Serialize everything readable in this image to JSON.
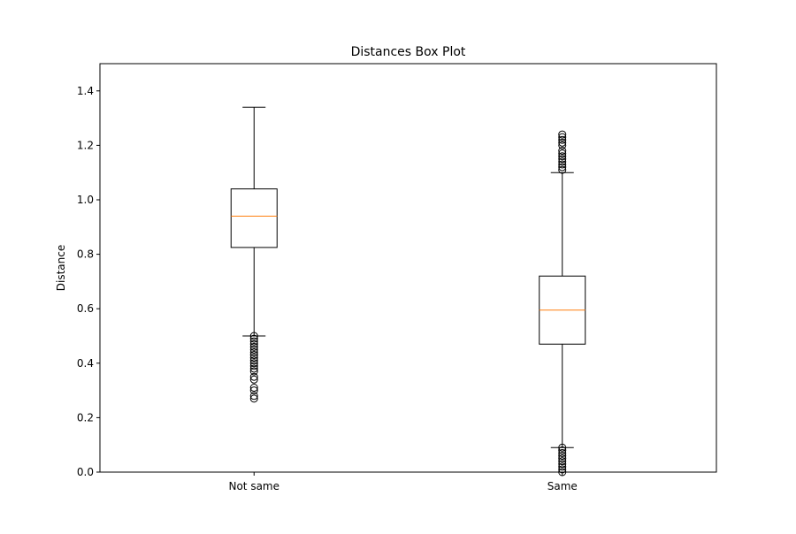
{
  "chart_data": {
    "type": "box",
    "title": "Distances Box Plot",
    "xlabel": "",
    "ylabel": "Distance",
    "ylim": [
      0.0,
      1.5
    ],
    "yticks": [
      "0.0",
      "0.2",
      "0.4",
      "0.6",
      "0.8",
      "1.0",
      "1.2",
      "1.4"
    ],
    "ytick_values": [
      0.0,
      0.2,
      0.4,
      0.6,
      0.8,
      1.0,
      1.2,
      1.4
    ],
    "categories": [
      "Not same",
      "Same"
    ],
    "boxes": [
      {
        "category": "Not same",
        "whisker_low": 0.5,
        "q1": 0.825,
        "median": 0.94,
        "q3": 1.04,
        "whisker_high": 1.34,
        "outliers": [
          0.27,
          0.28,
          0.3,
          0.31,
          0.34,
          0.35,
          0.37,
          0.38,
          0.39,
          0.4,
          0.41,
          0.42,
          0.43,
          0.44,
          0.45,
          0.46,
          0.47,
          0.48,
          0.49,
          0.5
        ]
      },
      {
        "category": "Same",
        "whisker_low": 0.09,
        "q1": 0.47,
        "median": 0.595,
        "q3": 0.72,
        "whisker_high": 1.1,
        "outliers": [
          0.0,
          0.01,
          0.02,
          0.03,
          0.04,
          0.05,
          0.06,
          0.07,
          0.08,
          0.09,
          1.11,
          1.12,
          1.13,
          1.14,
          1.15,
          1.16,
          1.17,
          1.18,
          1.2,
          1.21,
          1.22,
          1.23,
          1.24
        ]
      }
    ],
    "grid": false,
    "colors": {
      "box": "#000000",
      "median": "#ff7f0e",
      "whisker": "#000000",
      "outlier": "#000000"
    }
  }
}
